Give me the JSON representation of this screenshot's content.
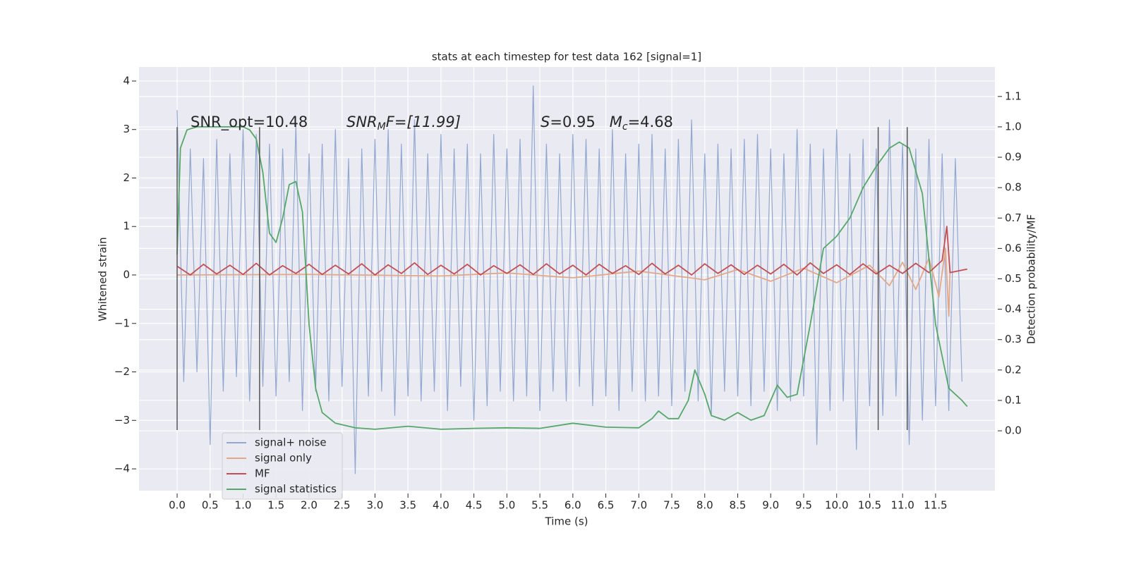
{
  "chart_data": {
    "type": "line",
    "title": "stats at each timestep for test data 162 [signal=1]",
    "xlabel": "Time (s)",
    "ylabel": "Whitened strain",
    "y2label": "Detection probability/MF",
    "xlim": [
      -0.578,
      12.4
    ],
    "ylim": [
      -4.45,
      4.29
    ],
    "y2lim": [
      -0.197,
      1.197
    ],
    "xticks": [
      {
        "value": 0,
        "label": "0.0"
      },
      0.5,
      {
        "value": 1,
        "label": "1.0"
      },
      1.5,
      {
        "value": 2,
        "label": "2.0"
      },
      2.5,
      {
        "value": 3,
        "label": "3.0"
      },
      3.5,
      {
        "value": 4,
        "label": "4.0"
      },
      4.5,
      {
        "value": 5,
        "label": "5.0"
      },
      5.5,
      {
        "value": 6,
        "label": "6.0"
      },
      6.5,
      {
        "value": 7,
        "label": "7.0"
      },
      7.5,
      {
        "value": 8,
        "label": "8.0"
      },
      8.5,
      {
        "value": 9,
        "label": "9.0"
      },
      9.5,
      {
        "value": 10,
        "label": "10.0"
      },
      10.5,
      {
        "value": 11,
        "label": "11.0"
      },
      11.5
    ],
    "yticks": [
      {
        "value": -4,
        "label": "−4"
      },
      {
        "value": -3,
        "label": "−3"
      },
      {
        "value": -2,
        "label": "−2"
      },
      {
        "value": -1,
        "label": "−1"
      },
      0,
      1,
      2,
      3,
      4
    ],
    "y2ticks": [
      {
        "value": 0,
        "label": "0.0"
      },
      0.1,
      0.2,
      0.3,
      0.4,
      0.5,
      0.6,
      0.7,
      0.8,
      0.9,
      {
        "value": 1,
        "label": "1.0"
      },
      1.1
    ],
    "grid": true,
    "legend": "lower left",
    "annotations": [
      {
        "parts": [
          "SNR_opt=10.48"
        ]
      },
      {
        "parts": [
          "SNR",
          "M",
          "F=[11.99]"
        ]
      },
      {
        "parts": [
          "S",
          "=0.95   ",
          "M",
          "c",
          "=4.68"
        ]
      }
    ],
    "vlines": [
      0.0,
      1.25,
      10.63,
      11.07
    ],
    "vlines_range": [
      -3.2,
      3.05
    ],
    "series": [
      {
        "name": "signal+ noise",
        "color": "#92a8d1",
        "x": [
          0.0,
          0.1,
          0.2,
          0.3,
          0.4,
          0.5,
          0.6,
          0.7,
          0.8,
          0.9,
          1.0,
          1.1,
          1.2,
          1.3,
          1.4,
          1.5,
          1.6,
          1.7,
          1.8,
          1.9,
          2.0,
          2.1,
          2.2,
          2.3,
          2.4,
          2.5,
          2.6,
          2.7,
          2.8,
          2.9,
          3.0,
          3.1,
          3.2,
          3.3,
          3.4,
          3.5,
          3.6,
          3.7,
          3.8,
          3.9,
          4.0,
          4.1,
          4.2,
          4.3,
          4.4,
          4.5,
          4.6,
          4.7,
          4.8,
          4.9,
          5.0,
          5.1,
          5.2,
          5.3,
          5.4,
          5.5,
          5.6,
          5.7,
          5.8,
          5.9,
          6.0,
          6.1,
          6.2,
          6.3,
          6.4,
          6.5,
          6.6,
          6.7,
          6.8,
          6.9,
          7.0,
          7.1,
          7.2,
          7.3,
          7.4,
          7.5,
          7.6,
          7.7,
          7.8,
          7.9,
          8.0,
          8.1,
          8.2,
          8.3,
          8.4,
          8.5,
          8.6,
          8.7,
          8.8,
          8.9,
          9.0,
          9.1,
          9.2,
          9.3,
          9.4,
          9.5,
          9.6,
          9.7,
          9.8,
          9.9,
          10.0,
          10.1,
          10.2,
          10.3,
          10.4,
          10.5,
          10.6,
          10.7,
          10.8,
          10.9,
          11.0,
          11.1,
          11.2,
          11.3,
          11.4,
          11.5,
          11.6,
          11.7,
          11.8,
          11.9
        ],
        "values": [
          3.4,
          -2.2,
          2.6,
          -2.0,
          2.4,
          -3.5,
          2.8,
          -2.4,
          2.5,
          -2.1,
          3.0,
          -2.6,
          2.9,
          -2.3,
          2.7,
          -2.5,
          2.6,
          -2.2,
          3.1,
          -2.8,
          2.5,
          -2.4,
          2.7,
          -2.6,
          3.0,
          -2.3,
          2.4,
          -4.1,
          2.6,
          -2.5,
          2.8,
          -2.4,
          3.0,
          -2.9,
          2.7,
          -2.5,
          3.2,
          -2.6,
          2.5,
          -2.4,
          2.9,
          -2.8,
          2.6,
          -2.3,
          2.7,
          -3.0,
          2.5,
          -2.7,
          2.9,
          -2.4,
          2.6,
          -2.6,
          2.8,
          -2.5,
          3.9,
          -2.8,
          2.7,
          -2.4,
          2.5,
          -2.6,
          2.9,
          -2.3,
          2.8,
          -2.7,
          2.6,
          -2.5,
          3.0,
          -2.8,
          2.5,
          -2.4,
          2.7,
          -2.6,
          2.9,
          -2.5,
          2.6,
          -2.7,
          2.8,
          -2.4,
          3.2,
          -2.6,
          2.5,
          -2.9,
          2.7,
          -2.4,
          2.6,
          -2.5,
          2.8,
          -2.7,
          2.9,
          -2.4,
          2.6,
          -2.8,
          2.5,
          -2.6,
          3.0,
          -2.5,
          2.7,
          -3.5,
          2.6,
          -2.8,
          3.0,
          -2.6,
          2.5,
          -3.6,
          2.8,
          -2.7,
          2.6,
          -2.9,
          3.2,
          -2.5,
          2.7,
          -3.5,
          2.6,
          -3.0,
          2.8,
          -2.7,
          2.5,
          -2.8,
          2.4,
          -2.2
        ]
      },
      {
        "name": "signal only",
        "color": "#e4a888",
        "x": [
          0.0,
          2.0,
          4.0,
          5.0,
          6.0,
          7.0,
          8.0,
          8.5,
          9.0,
          9.5,
          10.0,
          10.5,
          10.8,
          11.0,
          11.2,
          11.4,
          11.55,
          11.65,
          11.7,
          11.72
        ],
        "values": [
          0.0,
          0.01,
          -0.02,
          0.04,
          -0.06,
          0.08,
          -0.1,
          0.11,
          -0.13,
          0.14,
          -0.16,
          0.2,
          -0.22,
          0.26,
          -0.3,
          0.35,
          -0.45,
          0.55,
          -0.85,
          0.1
        ]
      },
      {
        "name": "MF",
        "color": "#c44e52",
        "x": [
          0.0,
          0.2,
          0.4,
          0.6,
          0.8,
          1.0,
          1.2,
          1.4,
          1.6,
          1.8,
          2.0,
          2.2,
          2.4,
          2.6,
          2.8,
          3.0,
          3.2,
          3.4,
          3.6,
          3.8,
          4.0,
          4.2,
          4.4,
          4.6,
          4.8,
          5.0,
          5.2,
          5.4,
          5.6,
          5.8,
          6.0,
          6.2,
          6.4,
          6.6,
          6.8,
          7.0,
          7.2,
          7.4,
          7.6,
          7.8,
          8.0,
          8.2,
          8.4,
          8.6,
          8.8,
          9.0,
          9.2,
          9.4,
          9.6,
          9.8,
          10.0,
          10.2,
          10.4,
          10.6,
          10.8,
          11.0,
          11.2,
          11.4,
          11.6,
          11.67,
          11.72,
          11.98
        ],
        "values": [
          0.18,
          0.0,
          0.22,
          0.02,
          0.2,
          0.01,
          0.24,
          0.0,
          0.19,
          0.03,
          0.22,
          0.01,
          0.2,
          0.02,
          0.23,
          0.0,
          0.21,
          0.03,
          0.25,
          0.01,
          0.2,
          0.02,
          0.22,
          0.0,
          0.19,
          0.03,
          0.21,
          0.01,
          0.23,
          0.02,
          0.2,
          0.0,
          0.22,
          0.03,
          0.19,
          0.01,
          0.24,
          0.02,
          0.2,
          0.0,
          0.23,
          0.03,
          0.21,
          0.01,
          0.2,
          0.02,
          0.22,
          0.0,
          0.25,
          0.03,
          0.21,
          0.01,
          0.23,
          0.02,
          0.2,
          0.03,
          0.24,
          0.05,
          0.3,
          1.0,
          0.05,
          0.12
        ]
      },
      {
        "name": "signal statistics",
        "color": "#55a868",
        "axis": "y2",
        "x": [
          0.0,
          0.05,
          0.15,
          0.3,
          1.0,
          1.1,
          1.2,
          1.3,
          1.4,
          1.5,
          1.6,
          1.7,
          1.8,
          1.9,
          2.0,
          2.1,
          2.2,
          2.4,
          2.7,
          3.0,
          3.5,
          4.0,
          4.5,
          5.0,
          5.5,
          6.0,
          6.5,
          7.0,
          7.2,
          7.3,
          7.45,
          7.6,
          7.75,
          7.85,
          8.0,
          8.1,
          8.3,
          8.5,
          8.7,
          8.9,
          9.1,
          9.25,
          9.4,
          9.6,
          9.8,
          10.0,
          10.2,
          10.4,
          10.6,
          10.8,
          10.95,
          11.1,
          11.3,
          11.5,
          11.7,
          11.9,
          11.98
        ],
        "values": [
          0.58,
          0.93,
          0.99,
          1.0,
          1.0,
          0.99,
          0.96,
          0.85,
          0.65,
          0.62,
          0.7,
          0.81,
          0.82,
          0.72,
          0.35,
          0.14,
          0.06,
          0.025,
          0.01,
          0.005,
          0.015,
          0.005,
          0.008,
          0.01,
          0.008,
          0.025,
          0.012,
          0.01,
          0.04,
          0.065,
          0.04,
          0.04,
          0.1,
          0.2,
          0.12,
          0.05,
          0.035,
          0.06,
          0.035,
          0.05,
          0.15,
          0.11,
          0.12,
          0.35,
          0.6,
          0.64,
          0.7,
          0.8,
          0.87,
          0.93,
          0.95,
          0.93,
          0.78,
          0.35,
          0.14,
          0.1,
          0.08
        ]
      }
    ]
  }
}
